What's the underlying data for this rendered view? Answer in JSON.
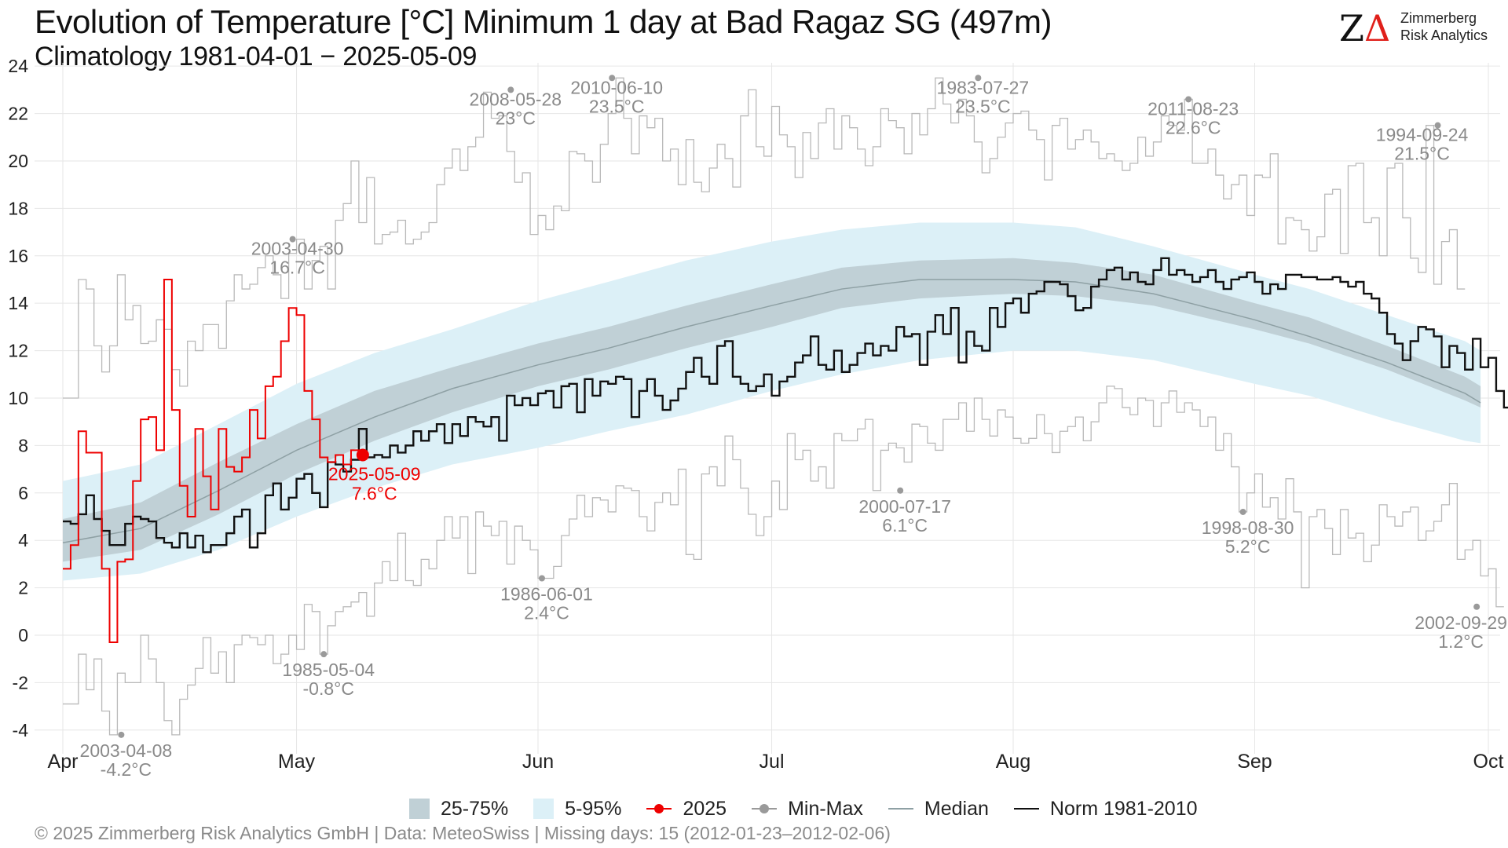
{
  "header": {
    "title": "Evolution of Temperature [°C] Minimum 1 day at Bad Ragaz  SG (497m)",
    "subtitle": "Climatology 1981-04-01 − 2025-05-09"
  },
  "logo": {
    "mark": "ZΔ",
    "line1": "Zimmerberg",
    "line2": "Risk Analytics",
    "mark_color": "#111111",
    "accent_color": "#e0201b"
  },
  "footer": {
    "text": "©  2025 Zimmerberg Risk Analytics GmbH | Data: MeteoSwiss | Missing days: 15 (2012-01-23–2012-02-06)"
  },
  "legend": {
    "items": [
      {
        "label": "25-75%",
        "kind": "box",
        "color": "#c0d0d6"
      },
      {
        "label": "5-95%",
        "kind": "box",
        "color": "#dcf0f7"
      },
      {
        "label": "2025",
        "kind": "line-dot",
        "color": "#ee0000"
      },
      {
        "label": "Min-Max",
        "kind": "line-dot",
        "color": "#9a9a9a"
      },
      {
        "label": "Median",
        "kind": "line",
        "color": "#8ea0a4"
      },
      {
        "label": "Norm 1981-2010",
        "kind": "line",
        "color": "#111111"
      }
    ]
  },
  "chart_data": {
    "type": "line",
    "x_axis": {
      "tick_labels": [
        "Apr",
        "May",
        "Jun",
        "Jul",
        "Aug",
        "Sep",
        "Oct"
      ],
      "tick_days": [
        0,
        30,
        61,
        91,
        122,
        153,
        183
      ],
      "range_days": [
        0,
        183
      ],
      "start_date": "04-01"
    },
    "y_axis": {
      "ylim": [
        -4.5,
        24
      ],
      "ticks": [
        -4,
        -2,
        0,
        2,
        4,
        6,
        8,
        10,
        12,
        14,
        16,
        18,
        20,
        22,
        24
      ],
      "grid": true
    },
    "colors": {
      "band_25_75": "#c0d0d6",
      "band_5_95": "#dcf0f7",
      "y2025": "#ee0000",
      "minmax": "#b9b9b9",
      "minmax_dot": "#9a9a9a",
      "median": "#8ea0a4",
      "norm": "#111111",
      "annotation_text": "#8a8a8a"
    },
    "bands": {
      "x": [
        0,
        10,
        20,
        30,
        40,
        50,
        61,
        70,
        80,
        91,
        100,
        110,
        122,
        130,
        140,
        153,
        160,
        170,
        180,
        182
      ],
      "p5": [
        2.3,
        2.6,
        3.6,
        5.0,
        6.2,
        7.2,
        7.9,
        8.6,
        9.3,
        10.3,
        11.0,
        11.6,
        12.0,
        12.0,
        11.6,
        10.6,
        10.1,
        9.1,
        8.2,
        8.1
      ],
      "p25": [
        3.1,
        3.6,
        5.1,
        6.8,
        8.2,
        9.4,
        10.5,
        11.2,
        12.1,
        13.0,
        13.8,
        14.2,
        14.4,
        14.3,
        13.9,
        12.9,
        12.3,
        11.2,
        9.9,
        9.6
      ],
      "p75": [
        4.9,
        5.6,
        7.3,
        8.9,
        10.3,
        11.3,
        12.3,
        13.0,
        13.9,
        14.8,
        15.5,
        15.8,
        15.9,
        15.7,
        15.2,
        14.0,
        13.4,
        12.2,
        10.9,
        10.5
      ],
      "p95": [
        6.5,
        7.2,
        8.9,
        10.6,
        11.9,
        12.9,
        14.1,
        14.9,
        15.8,
        16.6,
        17.1,
        17.4,
        17.4,
        17.2,
        16.4,
        15.2,
        14.6,
        13.5,
        12.4,
        12.0
      ]
    },
    "median": {
      "x": [
        0,
        10,
        20,
        30,
        40,
        50,
        61,
        70,
        80,
        91,
        100,
        110,
        122,
        130,
        140,
        153,
        160,
        170,
        180,
        182
      ],
      "values": [
        3.9,
        4.5,
        6.1,
        7.8,
        9.2,
        10.4,
        11.4,
        12.1,
        13.0,
        13.9,
        14.6,
        15.0,
        15.0,
        14.9,
        14.4,
        13.3,
        12.6,
        11.5,
        10.2,
        9.8
      ]
    },
    "norm": {
      "values": [
        4.8,
        4.7,
        5.1,
        5.9,
        4.9,
        4.4,
        3.8,
        3.8,
        4.7,
        5.0,
        4.9,
        4.8,
        4.1,
        3.9,
        3.7,
        4.3,
        3.7,
        4.2,
        3.5,
        3.8,
        3.8,
        4.3,
        5.0,
        5.3,
        3.7,
        4.3,
        5.9,
        6.4,
        5.3,
        5.8,
        6.6,
        6.8,
        6.0,
        5.4,
        7.3,
        7.2,
        6.9,
        7.4,
        8.7,
        7.5,
        7.6,
        7.5,
        8.0,
        7.7,
        8.0,
        8.6,
        8.2,
        8.6,
        8.9,
        8.1,
        8.9,
        8.4,
        9.2,
        9.0,
        8.8,
        9.2,
        8.2,
        10.1,
        9.7,
        10.0,
        9.7,
        10.2,
        10.3,
        9.6,
        10.5,
        10.6,
        9.4,
        10.8,
        10.1,
        10.7,
        10.6,
        10.9,
        10.8,
        9.2,
        10.3,
        10.8,
        10.1,
        9.5,
        9.9,
        10.4,
        11.1,
        11.7,
        10.9,
        10.6,
        12.2,
        12.4,
        10.9,
        10.6,
        10.3,
        10.5,
        11.0,
        10.1,
        10.7,
        10.9,
        11.5,
        11.8,
        12.6,
        11.4,
        11.2,
        12.0,
        11.1,
        11.4,
        11.9,
        12.3,
        11.8,
        12.2,
        12.0,
        13.0,
        12.6,
        12.7,
        11.4,
        12.8,
        13.5,
        12.7,
        13.8,
        11.5,
        12.8,
        12.2,
        12.0,
        13.8,
        13.0,
        14.0,
        14.2,
        13.6,
        14.4,
        14.5,
        14.9,
        14.9,
        14.8,
        14.3,
        13.7,
        13.8,
        14.7,
        15.0,
        15.4,
        15.5,
        15.0,
        15.3,
        14.9,
        14.8,
        15.4,
        15.9,
        15.2,
        15.4,
        15.2,
        14.9,
        15.1,
        15.4,
        14.9,
        14.6,
        15.0,
        15.1,
        15.3,
        14.9,
        14.4,
        14.8,
        14.6,
        15.2,
        15.2,
        15.1,
        15.1,
        15.0,
        15.0,
        15.1,
        14.9,
        14.7,
        14.9,
        14.4,
        14.2,
        13.6,
        12.7,
        12.3,
        11.6,
        12.4,
        13.0,
        12.9,
        12.6,
        11.3,
        12.2,
        11.9,
        11.2,
        12.5,
        11.3,
        11.7,
        10.3,
        9.6,
        10.1
      ]
    },
    "norm_note": "daily values from 1 Apr; rendered at compressed resolution",
    "year_2025": {
      "x": [
        0,
        1,
        2,
        3,
        4,
        5,
        6,
        7,
        8,
        9,
        10,
        11,
        12,
        13,
        14,
        15,
        16,
        17,
        18,
        19,
        20,
        21,
        22,
        23,
        24,
        25,
        26,
        27,
        28,
        29,
        30,
        31,
        32,
        33,
        34,
        35,
        36,
        37,
        38
      ],
      "values": [
        2.8,
        3.8,
        8.6,
        7.7,
        7.7,
        2.8,
        -0.3,
        3.1,
        3.2,
        6.5,
        9.1,
        9.2,
        7.8,
        15.0,
        9.5,
        6.3,
        5.0,
        8.7,
        6.7,
        5.3,
        8.7,
        7.1,
        6.9,
        7.5,
        9.5,
        8.3,
        10.5,
        10.9,
        12.4,
        13.8,
        13.5,
        10.3,
        9.1,
        7.5,
        7.3,
        7.6,
        7.2,
        7.8,
        7.6
      ],
      "last_point": {
        "day": 38,
        "value": 7.6,
        "label_date": "2025-05-09",
        "label_value": "7.6°C"
      }
    },
    "minmax": {
      "max_values": [
        10.0,
        10.0,
        15.0,
        14.6,
        12.2,
        11.1,
        12.2,
        15.2,
        13.3,
        13.9,
        12.3,
        12.4,
        13.3,
        12.9,
        11.2,
        10.5,
        12.4,
        12.0,
        13.1,
        13.1,
        12.1,
        14.1,
        15.2,
        14.6,
        14.8,
        15.5,
        16.0,
        15.2,
        14.2,
        16.1,
        16.7,
        14.6,
        15.8,
        16.4,
        14.6,
        17.5,
        18.2,
        20.0,
        17.4,
        19.3,
        16.5,
        16.9,
        17.0,
        17.5,
        16.5,
        16.7,
        17.0,
        17.4,
        19.0,
        19.7,
        20.5,
        19.6,
        20.6,
        21.0,
        22.9,
        21.8,
        21.9,
        20.4,
        19.1,
        19.5,
        16.9,
        17.7,
        17.1,
        18.1,
        17.9,
        20.4,
        20.3,
        20.0,
        19.1,
        20.7,
        22.0,
        23.5,
        21.8,
        20.3,
        21.9,
        21.4,
        21.8,
        20.0,
        20.5,
        19.0,
        20.9,
        19.1,
        18.7,
        19.7,
        20.7,
        20.1,
        18.9,
        21.9,
        23.0,
        20.6,
        20.2,
        22.3,
        21.1,
        20.6,
        19.3,
        21.2,
        20.1,
        21.6,
        22.2,
        20.5,
        21.9,
        21.4,
        20.5,
        19.8,
        20.6,
        22.2,
        21.7,
        21.4,
        20.3,
        22.0,
        21.1,
        22.2,
        23.5,
        22.4,
        21.6,
        22.6,
        21.9,
        20.8,
        19.5,
        20.1,
        21.0,
        21.6,
        22.0,
        22.1,
        21.3,
        20.9,
        19.2,
        21.5,
        21.8,
        20.5,
        20.9,
        21.3,
        20.8,
        20.1,
        20.3,
        20.0,
        19.6,
        19.9,
        21.0,
        20.2,
        20.8,
        21.9,
        21.5,
        21.3,
        22.6,
        19.9,
        19.9,
        20.5,
        19.4,
        18.4,
        19.0,
        19.4,
        17.7,
        19.4,
        19.3,
        20.3,
        16.5,
        17.6,
        17.5,
        17.1,
        16.2,
        16.8,
        18.6,
        18.8,
        16.1,
        19.8,
        19.9,
        17.4,
        17.6,
        16.0,
        19.7,
        19.9,
        17.6,
        15.9,
        15.3,
        21.5,
        14.8,
        16.6,
        17.1,
        14.6
      ],
      "min_values": [
        -2.9,
        -2.9,
        -0.8,
        -2.3,
        -1.0,
        -3.2,
        -4.2,
        -1.6,
        -2.0,
        -2.0,
        0.0,
        -1.0,
        -2.0,
        -3.6,
        -4.2,
        -2.7,
        -2.1,
        -1.4,
        -0.1,
        -1.6,
        -0.7,
        -2.0,
        -0.4,
        0.0,
        -0.1,
        -0.4,
        0.0,
        -1.2,
        -0.8,
        0.0,
        -0.6,
        1.3,
        1.0,
        -0.8,
        0.4,
        1.0,
        1.2,
        1.4,
        1.8,
        0.8,
        2.2,
        3.1,
        2.3,
        4.3,
        2.3,
        2.1,
        3.2,
        2.8,
        4.0,
        5.0,
        4.1,
        5.0,
        2.6,
        5.2,
        4.6,
        4.2,
        4.8,
        3.0,
        4.6,
        4.0,
        3.6,
        2.4,
        2.4,
        2.9,
        4.2,
        4.9,
        5.9,
        5.0,
        5.8,
        5.7,
        5.2,
        6.3,
        6.2,
        6.1,
        5.0,
        4.4,
        5.6,
        6.0,
        5.5,
        7.0,
        3.4,
        3.2,
        6.8,
        7.1,
        6.3,
        8.4,
        7.4,
        6.2,
        5.1,
        4.2,
        5.0,
        6.5,
        5.3,
        8.5,
        7.4,
        7.8,
        6.5,
        7.1,
        6.2,
        8.5,
        8.2,
        8.2,
        8.7,
        9.1,
        6.1,
        7.8,
        8.1,
        7.9,
        7.3,
        8.9,
        8.8,
        8.1,
        7.8,
        9.1,
        9.1,
        9.8,
        8.6,
        10.0,
        9.1,
        8.4,
        9.5,
        9.2,
        8.3,
        8.1,
        8.3,
        9.3,
        8.5,
        7.7,
        8.6,
        8.8,
        9.2,
        8.2,
        9.0,
        9.8,
        10.5,
        10.4,
        9.6,
        9.3,
        10.0,
        9.9,
        8.8,
        9.8,
        10.3,
        9.4,
        9.8,
        9.5,
        8.8,
        9.2,
        7.8,
        8.5,
        7.1,
        5.2,
        6.0,
        6.8,
        5.4,
        5.8,
        4.9,
        6.6,
        5.2,
        2.0,
        5.0,
        5.3,
        4.5,
        3.4,
        5.3,
        4.1,
        4.3,
        3.1,
        3.8,
        5.5,
        5.0,
        4.6,
        5.2,
        5.4,
        4.0,
        4.4,
        4.8,
        5.5,
        6.4,
        3.2,
        3.6,
        4.0,
        2.5,
        2.8,
        1.2
      ],
      "max_annotations": [
        {
          "day": 29,
          "value": 16.7,
          "date": "2003-04-30",
          "label": "16.7°C"
        },
        {
          "day": 57,
          "value": 23.0,
          "date": "2008-05-28",
          "label": "23°C"
        },
        {
          "day": 70,
          "value": 23.5,
          "date": "2010-06-10",
          "label": "23.5°C"
        },
        {
          "day": 117,
          "value": 23.5,
          "date": "1983-07-27",
          "label": "23.5°C"
        },
        {
          "day": 144,
          "value": 22.6,
          "date": "2011-08-23",
          "label": "22.6°C"
        },
        {
          "day": 176,
          "value": 21.5,
          "date": "1994-09-24",
          "label": "21.5°C"
        }
      ],
      "min_annotations": [
        {
          "day": 7,
          "value": -4.2,
          "date": "2003-04-08",
          "label": "-4.2°C"
        },
        {
          "day": 33,
          "value": -0.8,
          "date": "1985-05-04",
          "label": "-0.8°C"
        },
        {
          "day": 61,
          "value": 2.4,
          "date": "1986-06-01",
          "label": "2.4°C"
        },
        {
          "day": 107,
          "value": 6.1,
          "date": "2000-07-17",
          "label": "6.1°C"
        },
        {
          "day": 151,
          "value": 5.2,
          "date": "1998-08-30",
          "label": "5.2°C"
        },
        {
          "day": 181,
          "value": 1.2,
          "date": "2002-09-29",
          "label": "1.2°C"
        }
      ]
    }
  }
}
